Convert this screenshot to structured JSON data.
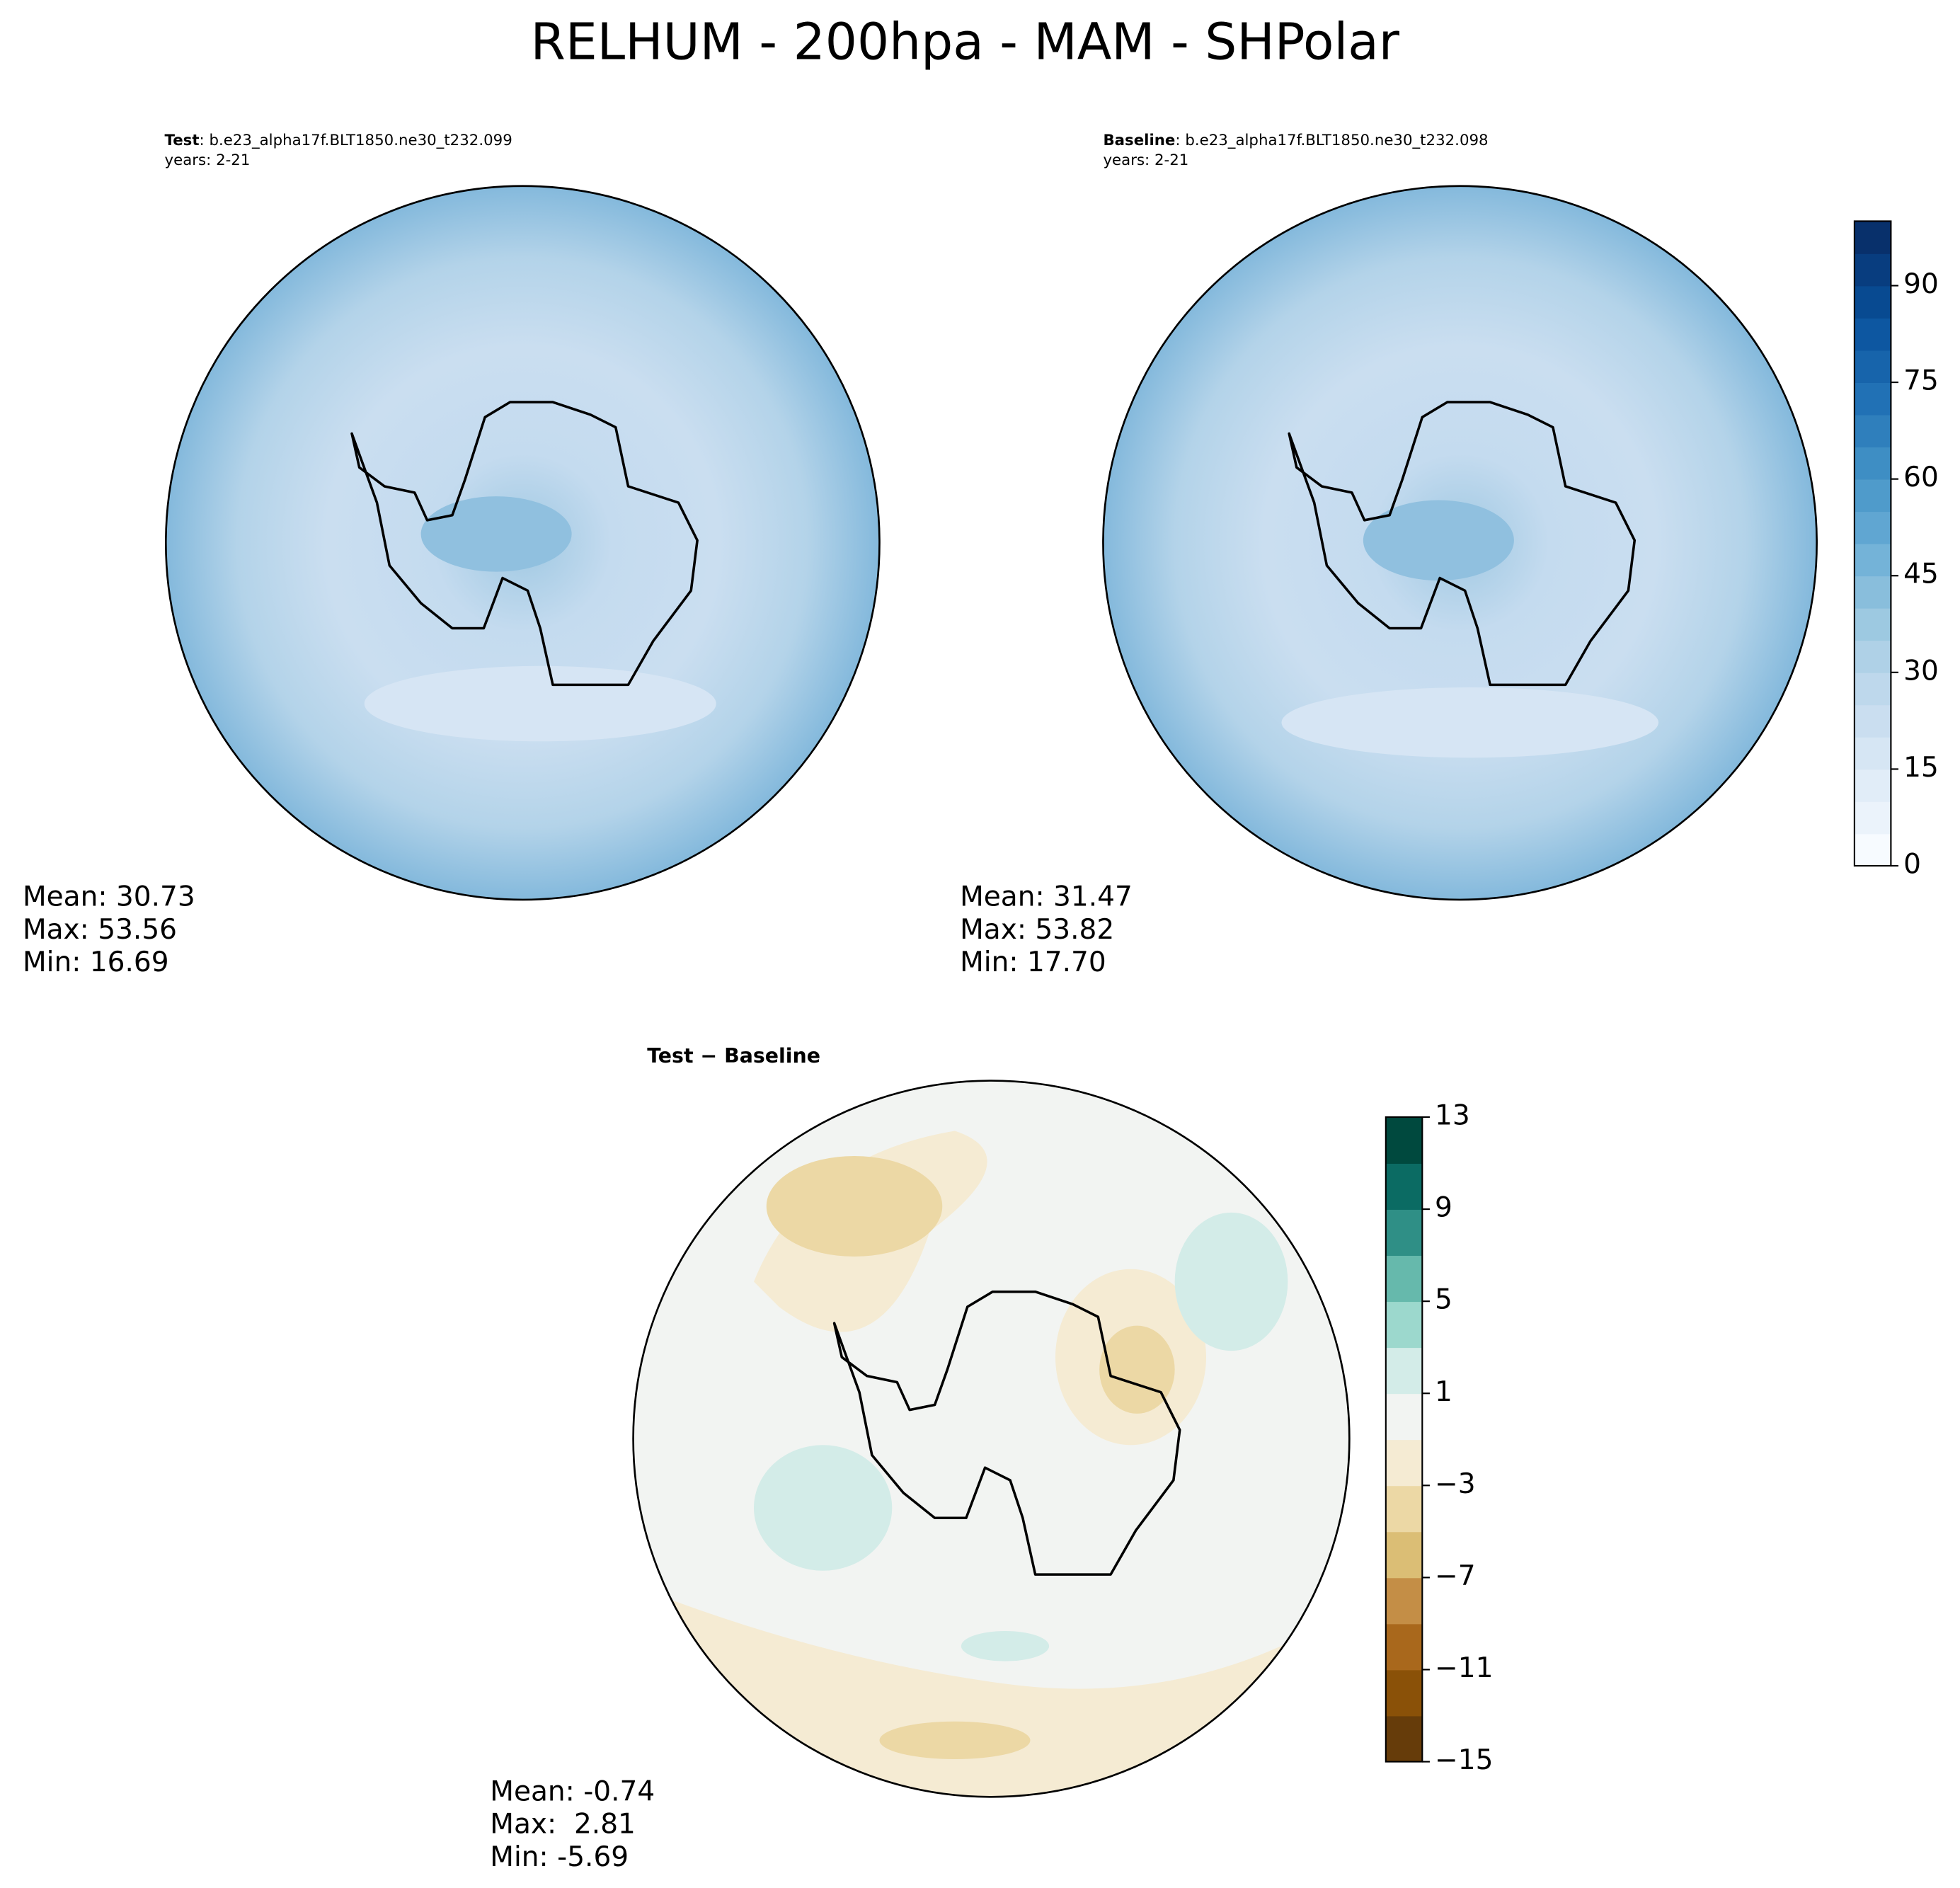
{
  "title": "RELHUM - 200hpa - MAM - SHPolar",
  "panels": [
    {
      "label_bold": "Test",
      "label_rest": ": b.e23_alpha17f.BLT1850.ne30_t232.099",
      "years": "years: 2-21",
      "stats": [
        "Mean: 30.73",
        "Max: 53.56",
        "Min: 16.69"
      ]
    },
    {
      "label_bold": "Baseline",
      "label_rest": ": b.e23_alpha17f.BLT1850.ne30_t232.098",
      "years": "years: 2-21",
      "stats": [
        "Mean: 31.47",
        "Max: 53.82",
        "Min: 17.70"
      ]
    },
    {
      "label_bold": "Test − Baseline",
      "stats": [
        "Mean: -0.74",
        "Max:  2.81",
        "Min: -5.69"
      ]
    }
  ],
  "colorbars": [
    {
      "lim": [
        0,
        100
      ],
      "ticks": [
        0,
        15,
        30,
        45,
        60,
        75,
        90
      ],
      "levels": [
        0,
        5,
        10,
        15,
        20,
        25,
        30,
        35,
        40,
        45,
        50,
        55,
        60,
        65,
        70,
        75,
        80,
        85,
        90,
        95,
        100
      ],
      "colors": [
        "#f7fbff",
        "#ebf3fb",
        "#e1edf8",
        "#d6e6f4",
        "#cadef0",
        "#bed8ec",
        "#afd1e7",
        "#9dc9e1",
        "#89bedc",
        "#74b3d8",
        "#60a6d2",
        "#4f9bcb",
        "#3e8ec4",
        "#2f7fbc",
        "#2171b5",
        "#1764ab",
        "#0d57a1",
        "#084a91",
        "#083d7f",
        "#08306b"
      ]
    },
    {
      "lim": [
        -15,
        13
      ],
      "ticks": [
        {
          "value": -15,
          "label": "−15"
        },
        {
          "value": -11,
          "label": "−11"
        },
        {
          "value": -7,
          "label": "−7"
        },
        {
          "value": -3,
          "label": "−3"
        },
        1,
        5,
        9,
        13
      ],
      "levels": [
        -15,
        -13,
        -11,
        -9,
        -7,
        -5,
        -3,
        -1,
        1,
        3,
        5,
        7,
        9,
        11,
        13
      ],
      "colors": [
        "#663c0a",
        "#8a5108",
        "#a9681c",
        "#c48e46",
        "#dbbe75",
        "#ecd8a5",
        "#f5ebd3",
        "#f2f4f2",
        "#d3ece8",
        "#9cd8cd",
        "#66b9ac",
        "#2f8f86",
        "#0b6b63",
        "#00493e"
      ]
    }
  ]
}
